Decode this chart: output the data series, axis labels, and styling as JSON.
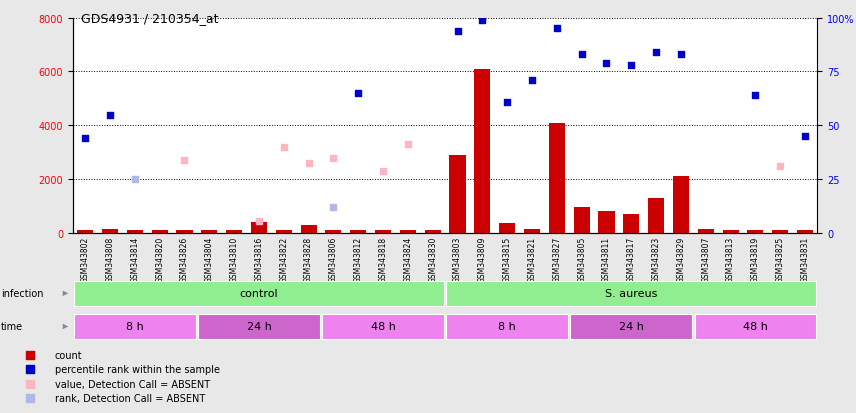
{
  "title": "GDS4931 / 210354_at",
  "samples": [
    "GSM343802",
    "GSM343808",
    "GSM343814",
    "GSM343820",
    "GSM343826",
    "GSM343804",
    "GSM343810",
    "GSM343816",
    "GSM343822",
    "GSM343828",
    "GSM343806",
    "GSM343812",
    "GSM343818",
    "GSM343824",
    "GSM343830",
    "GSM343803",
    "GSM343809",
    "GSM343815",
    "GSM343821",
    "GSM343827",
    "GSM343805",
    "GSM343811",
    "GSM343817",
    "GSM343823",
    "GSM343829",
    "GSM343807",
    "GSM343813",
    "GSM343819",
    "GSM343825",
    "GSM343831"
  ],
  "count_values": [
    120,
    130,
    100,
    110,
    100,
    100,
    120,
    400,
    110,
    280,
    120,
    110,
    120,
    100,
    90,
    2900,
    6100,
    350,
    150,
    4100,
    950,
    800,
    700,
    1300,
    2100,
    130,
    110,
    100,
    100,
    120
  ],
  "percentile_rank_pct": [
    44,
    55,
    null,
    null,
    null,
    null,
    null,
    null,
    null,
    null,
    null,
    65,
    null,
    null,
    null,
    94,
    99,
    61,
    71,
    95,
    83,
    79,
    78,
    84,
    83,
    null,
    null,
    64,
    null,
    45
  ],
  "absent_value_left": [
    null,
    null,
    null,
    null,
    2700,
    null,
    null,
    450,
    3200,
    2600,
    2800,
    null,
    2300,
    3300,
    null,
    null,
    null,
    null,
    null,
    null,
    null,
    null,
    null,
    null,
    null,
    null,
    null,
    null,
    2500,
    null
  ],
  "absent_rank_pct": [
    null,
    null,
    25,
    null,
    null,
    null,
    null,
    null,
    null,
    null,
    12,
    null,
    null,
    null,
    null,
    null,
    null,
    null,
    null,
    null,
    null,
    null,
    null,
    null,
    null,
    null,
    null,
    null,
    null,
    null
  ],
  "infection_groups": [
    {
      "label": "control",
      "start": 0,
      "end": 15,
      "color": "#90ee90"
    },
    {
      "label": "S. aureus",
      "start": 15,
      "end": 30,
      "color": "#90ee90"
    }
  ],
  "time_groups": [
    {
      "label": "8 h",
      "start": 0,
      "end": 5,
      "color": "#ee82ee"
    },
    {
      "label": "24 h",
      "start": 5,
      "end": 10,
      "color": "#cc66cc"
    },
    {
      "label": "48 h",
      "start": 10,
      "end": 15,
      "color": "#ee82ee"
    },
    {
      "label": "8 h",
      "start": 15,
      "end": 20,
      "color": "#ee82ee"
    },
    {
      "label": "24 h",
      "start": 20,
      "end": 25,
      "color": "#cc66cc"
    },
    {
      "label": "48 h",
      "start": 25,
      "end": 30,
      "color": "#ee82ee"
    }
  ],
  "ylim_left": [
    0,
    8000
  ],
  "left_yticks": [
    0,
    2000,
    4000,
    6000,
    8000
  ],
  "right_yticks": [
    0,
    25,
    50,
    75,
    100
  ],
  "bar_color": "#cc0000",
  "blue_marker_color": "#0000cc",
  "absent_value_color": "#ffb6c1",
  "absent_rank_color": "#b0b8e8",
  "bg_color": "#e8e8e8",
  "xtick_bg_color": "#d0d0d0",
  "plot_bg": "#ffffff",
  "legend_items": [
    {
      "label": "count",
      "color": "#cc0000"
    },
    {
      "label": "percentile rank within the sample",
      "color": "#0000cc"
    },
    {
      "label": "value, Detection Call = ABSENT",
      "color": "#ffb6c1"
    },
    {
      "label": "rank, Detection Call = ABSENT",
      "color": "#b0b8e8"
    }
  ]
}
